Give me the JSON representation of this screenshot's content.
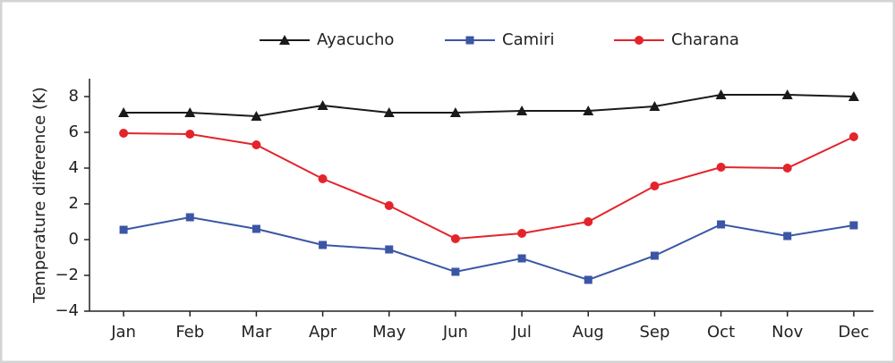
{
  "chart_data": {
    "type": "line",
    "y_label": "Temperature difference (K)",
    "categories": [
      "Jan",
      "Feb",
      "Mar",
      "Apr",
      "May",
      "Jun",
      "Jul",
      "Aug",
      "Sep",
      "Oct",
      "Nov",
      "Dec"
    ],
    "series": [
      {
        "name": "Ayacucho",
        "color": "#1a1a1a",
        "marker": "triangle",
        "values": [
          7.1,
          7.1,
          6.9,
          7.5,
          7.1,
          7.1,
          7.2,
          7.2,
          7.45,
          8.1,
          8.1,
          8.0
        ]
      },
      {
        "name": "Camiri",
        "color": "#3a56a5",
        "marker": "square",
        "values": [
          0.55,
          1.25,
          0.6,
          -0.3,
          -0.55,
          -1.8,
          -1.05,
          -2.25,
          -0.9,
          0.85,
          0.2,
          0.8
        ]
      },
      {
        "name": "Charana",
        "color": "#e3242b",
        "marker": "circle",
        "values": [
          5.95,
          5.9,
          5.3,
          3.4,
          1.9,
          0.05,
          0.35,
          1.0,
          3.0,
          4.05,
          4.0,
          5.75
        ]
      }
    ],
    "ylim": [
      -4,
      9
    ],
    "yticks": [
      {
        "value": -4,
        "label": "−4"
      },
      {
        "value": -2,
        "label": "−2"
      },
      0,
      2,
      4,
      6,
      8
    ],
    "grid": false,
    "legend": "top"
  }
}
